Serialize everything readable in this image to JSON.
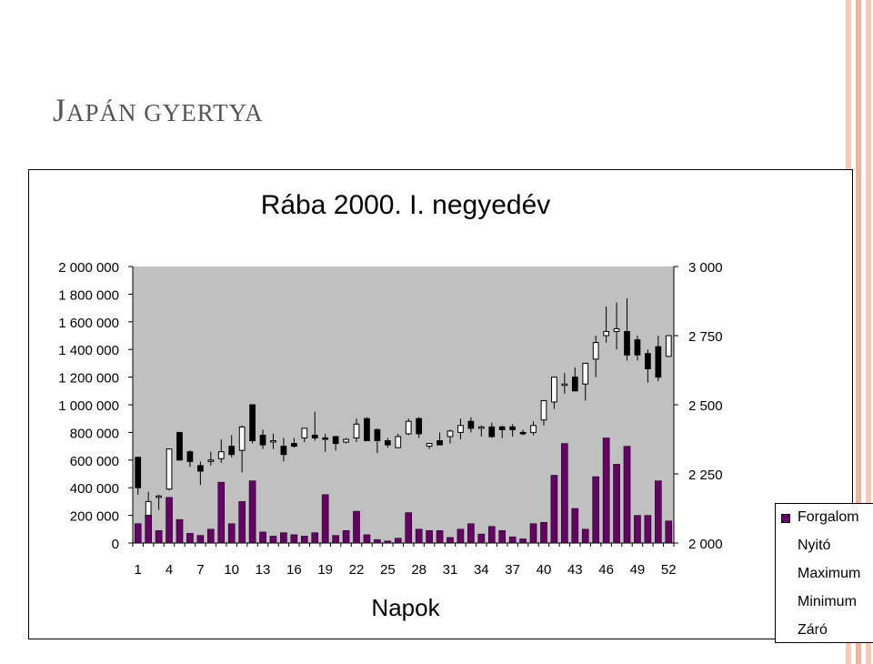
{
  "slide": {
    "title_first": "J",
    "title_rest": "APÁN GYERTYA"
  },
  "colors": {
    "plot_bg": "#c0c0c0",
    "bar": "#660066",
    "candle_up": "#ffffff",
    "candle_down": "#000000",
    "stripe_1": "#f7c9b8",
    "stripe_2": "#f2b39e"
  },
  "chart_data": {
    "type": "bar",
    "title": "Rába 2000. I. negyedév",
    "xlabel": "Napok",
    "ylabel": "",
    "x": [
      1,
      2,
      3,
      4,
      5,
      6,
      7,
      8,
      9,
      10,
      11,
      12,
      13,
      14,
      15,
      16,
      17,
      18,
      19,
      20,
      21,
      22,
      23,
      24,
      25,
      26,
      27,
      28,
      29,
      30,
      31,
      32,
      33,
      34,
      35,
      36,
      37,
      38,
      39,
      40,
      41,
      42,
      43,
      44,
      45,
      46,
      47,
      48,
      49,
      50,
      51,
      52
    ],
    "x_tick_labels": [
      "1",
      "4",
      "7",
      "10",
      "13",
      "16",
      "19",
      "22",
      "25",
      "28",
      "31",
      "34",
      "37",
      "40",
      "43",
      "46",
      "49",
      "52"
    ],
    "y_left": {
      "range": [
        0,
        2000000
      ],
      "tick_labels": [
        "0",
        "200 000",
        "400 000",
        "600 000",
        "800 000",
        "1 000 000",
        "1 200 000",
        "1 400 000",
        "1 600 000",
        "1 800 000",
        "2 000 000"
      ]
    },
    "y_right": {
      "range": [
        2000,
        3000
      ],
      "tick_labels": [
        "2 000",
        "2 250",
        "2 500",
        "2 750",
        "3 000"
      ]
    },
    "legend": [
      "Forgalom",
      "Nyitó",
      "Maximum",
      "Minimum",
      "Záró"
    ],
    "legend_position": "right",
    "series": [
      {
        "name": "Forgalom",
        "axis": "left",
        "values": [
          140000,
          200000,
          90000,
          330000,
          170000,
          70000,
          55000,
          100000,
          440000,
          140000,
          300000,
          450000,
          80000,
          50000,
          75000,
          60000,
          50000,
          75000,
          350000,
          55000,
          90000,
          230000,
          60000,
          25000,
          15000,
          35000,
          220000,
          100000,
          90000,
          90000,
          40000,
          100000,
          140000,
          65000,
          120000,
          90000,
          45000,
          30000,
          140000,
          150000,
          490000,
          720000,
          250000,
          100000,
          480000,
          760000,
          570000,
          700000,
          200000,
          200000,
          450000,
          160000
        ]
      },
      {
        "name": "Nyitó",
        "axis": "left",
        "values": [
          620000,
          200000,
          340000,
          390000,
          800000,
          660000,
          560000,
          600000,
          610000,
          700000,
          670000,
          1000000,
          780000,
          740000,
          700000,
          720000,
          760000,
          780000,
          760000,
          770000,
          730000,
          760000,
          900000,
          820000,
          740000,
          690000,
          790000,
          900000,
          700000,
          740000,
          770000,
          800000,
          880000,
          830000,
          840000,
          840000,
          840000,
          800000,
          800000,
          890000,
          1020000,
          1150000,
          1200000,
          1150000,
          1330000,
          1500000,
          1530000,
          1530000,
          1470000,
          1370000,
          1420000,
          1350000
        ]
      },
      {
        "name": "Maximum",
        "axis": "left",
        "values": [
          620000,
          370000,
          350000,
          680000,
          800000,
          670000,
          590000,
          660000,
          750000,
          780000,
          850000,
          1000000,
          820000,
          790000,
          760000,
          760000,
          830000,
          950000,
          790000,
          770000,
          760000,
          900000,
          910000,
          830000,
          760000,
          790000,
          900000,
          910000,
          720000,
          800000,
          820000,
          900000,
          910000,
          850000,
          870000,
          850000,
          860000,
          820000,
          880000,
          900000,
          1080000,
          1230000,
          1270000,
          1160000,
          1500000,
          1710000,
          1740000,
          1770000,
          1500000,
          1400000,
          1500000,
          1500000
        ]
      },
      {
        "name": "Minimum",
        "axis": "left",
        "values": [
          350000,
          200000,
          240000,
          380000,
          600000,
          550000,
          420000,
          560000,
          580000,
          620000,
          510000,
          720000,
          680000,
          680000,
          590000,
          690000,
          730000,
          740000,
          660000,
          670000,
          720000,
          730000,
          740000,
          650000,
          690000,
          690000,
          780000,
          760000,
          680000,
          710000,
          720000,
          750000,
          800000,
          770000,
          760000,
          760000,
          770000,
          780000,
          780000,
          850000,
          970000,
          1080000,
          1100000,
          1030000,
          1200000,
          1450000,
          1400000,
          1320000,
          1320000,
          1160000,
          1170000,
          1350000
        ]
      },
      {
        "name": "Záró",
        "axis": "left",
        "values": [
          400000,
          300000,
          340000,
          680000,
          600000,
          590000,
          520000,
          600000,
          660000,
          640000,
          840000,
          740000,
          710000,
          740000,
          640000,
          700000,
          830000,
          760000,
          750000,
          720000,
          750000,
          860000,
          740000,
          740000,
          710000,
          770000,
          880000,
          790000,
          720000,
          710000,
          810000,
          850000,
          830000,
          840000,
          770000,
          820000,
          820000,
          790000,
          850000,
          1030000,
          1200000,
          1150000,
          1100000,
          1300000,
          1450000,
          1530000,
          1550000,
          1360000,
          1360000,
          1260000,
          1200000,
          1500000
        ]
      }
    ]
  }
}
